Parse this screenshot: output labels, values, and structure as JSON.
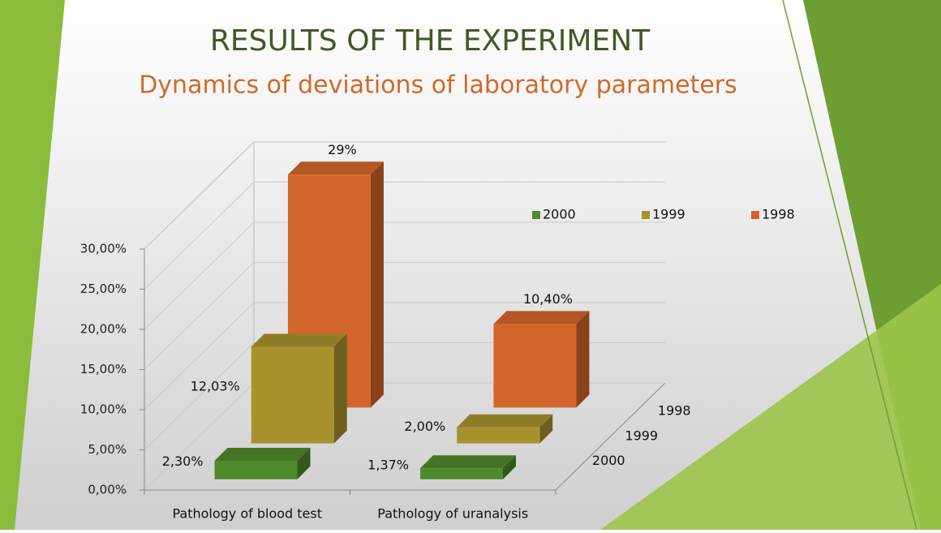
{
  "chart_data": {
    "type": "bar3d",
    "title": "RESULTS OF THE EXPERIMENT",
    "subtitle": "Dynamics of deviations of laboratory parameters",
    "categories": [
      "Pathology of blood test",
      "Pathology of uranalysis"
    ],
    "series": [
      {
        "name": "2000",
        "color": "#4f8a2b",
        "values": [
          2.3,
          1.37
        ],
        "value_labels": [
          "2,30%",
          "1,37%"
        ]
      },
      {
        "name": "1999",
        "color": "#a8922e",
        "values": [
          12.03,
          2.0
        ],
        "value_labels": [
          "12,03%",
          "2,00%"
        ]
      },
      {
        "name": "1998",
        "color": "#d2662a",
        "values": [
          29,
          10.4
        ],
        "value_labels": [
          "29%",
          "10,40%"
        ]
      }
    ],
    "ylim": [
      0,
      30
    ],
    "yticks": [
      {
        "value": 0,
        "label": "0,00%"
      },
      {
        "value": 5,
        "label": "5,00%"
      },
      {
        "value": 10,
        "label": "10,00%"
      },
      {
        "value": 15,
        "label": "15,00%"
      },
      {
        "value": 20,
        "label": "20,00%"
      },
      {
        "value": 25,
        "label": "25,00%"
      },
      {
        "value": 30,
        "label": "30,00%"
      }
    ],
    "grid": true
  }
}
